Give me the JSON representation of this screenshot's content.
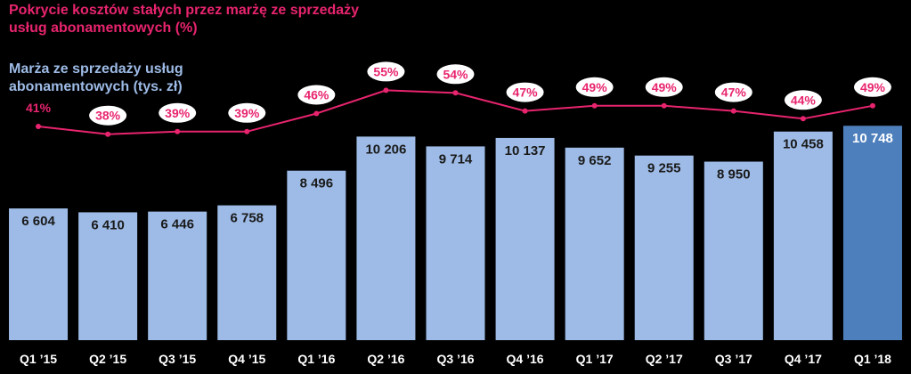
{
  "chart_data": {
    "type": "bar+line",
    "categories": [
      "Q1 '15",
      "Q2 '15",
      "Q3 '15",
      "Q4 '15",
      "Q1 '16",
      "Q2 '16",
      "Q3 '16",
      "Q4 '16",
      "Q1 '17",
      "Q2 '17",
      "Q3 '17",
      "Q4 '17",
      "Q1 '18"
    ],
    "series": [
      {
        "name": "Marża ze sprzedaży usług abonamentowych (tys. zł)",
        "type": "bar",
        "values": [
          6604,
          6410,
          6446,
          6758,
          8496,
          10206,
          9714,
          10137,
          9652,
          9255,
          8950,
          10458,
          10748
        ],
        "labels": [
          "6 604",
          "6 410",
          "6 446",
          "6 758",
          "8 496",
          "10 206",
          "9 714",
          "10 137",
          "9 652",
          "9 255",
          "8 950",
          "10 458",
          "10 748"
        ],
        "color": "#9dbbe6",
        "highlight_color": "#4e7fbd"
      },
      {
        "name": "Pokrycie kosztów stałych przez marżę ze sprzedaży usług abonamentowych (%)",
        "type": "line",
        "values": [
          41,
          38,
          39,
          39,
          46,
          55,
          54,
          47,
          49,
          49,
          47,
          44,
          49
        ],
        "labels": [
          "41%",
          "38%",
          "39%",
          "39%",
          "46%",
          "55%",
          "54%",
          "47%",
          "49%",
          "49%",
          "47%",
          "44%",
          "49%"
        ],
        "color": "#e8246e"
      }
    ],
    "legend_placement": "top-left",
    "grid": false
  }
}
